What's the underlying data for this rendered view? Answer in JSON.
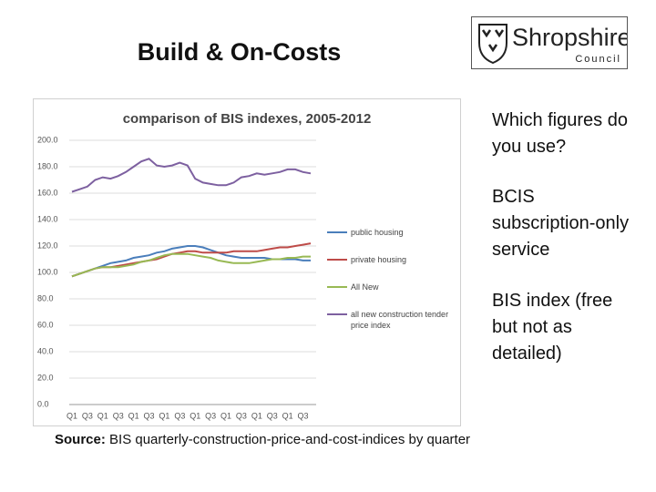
{
  "slide": {
    "title": "Build & On-Costs",
    "logo": {
      "name": "Shropshire",
      "sub": "Council"
    },
    "notes": [
      "Which figures do you use?",
      "BCIS subscription-only service",
      "BIS index (free but not as detailed)"
    ],
    "source_label": "Source:",
    "source_text": "BIS quarterly-construction-price-and-cost-indices by quarter"
  },
  "chart_data": {
    "type": "line",
    "title": "comparison of BIS indexes, 2005-2012",
    "categories": [
      "Q1",
      null,
      "Q3",
      null,
      "Q1",
      null,
      "Q3",
      null,
      "Q1",
      null,
      "Q3",
      null,
      "Q1",
      null,
      "Q3",
      null,
      "Q1",
      null,
      "Q3",
      null,
      "Q1",
      null,
      "Q3",
      null,
      "Q1",
      null,
      "Q3",
      null,
      "Q1",
      null,
      "Q3",
      null
    ],
    "series": [
      {
        "name": "public housing",
        "color": "#4a7ebb",
        "values": [
          97,
          99,
          101,
          103,
          105,
          107,
          108,
          109,
          111,
          112,
          113,
          115,
          116,
          118,
          119,
          120,
          120,
          119,
          117,
          115,
          113,
          112,
          111,
          111,
          111,
          111,
          110,
          110,
          110,
          110,
          109,
          109
        ]
      },
      {
        "name": "private housing",
        "color": "#be4b48",
        "values": [
          97,
          99,
          101,
          103,
          104,
          104,
          105,
          106,
          107,
          108,
          109,
          110,
          112,
          114,
          115,
          116,
          116,
          115,
          115,
          115,
          115,
          116,
          116,
          116,
          116,
          117,
          118,
          119,
          119,
          120,
          121,
          122
        ]
      },
      {
        "name": "All New",
        "color": "#98b954",
        "values": [
          97,
          99,
          101,
          103,
          104,
          104,
          104,
          105,
          106,
          108,
          109,
          111,
          113,
          114,
          114,
          114,
          113,
          112,
          111,
          109,
          108,
          107,
          107,
          107,
          108,
          109,
          110,
          110,
          111,
          111,
          112,
          112
        ]
      },
      {
        "name": "all new construction tender price index",
        "color": "#7d60a0",
        "values": [
          161,
          163,
          165,
          170,
          172,
          171,
          173,
          176,
          180,
          184,
          186,
          181,
          180,
          181,
          183,
          181,
          171,
          168,
          167,
          166,
          166,
          168,
          172,
          173,
          175,
          174,
          175,
          176,
          178,
          178,
          176,
          175
        ]
      }
    ],
    "ylim": [
      0,
      200
    ],
    "yticks": [
      {
        "value": 0,
        "label": "0.0"
      },
      {
        "value": 20,
        "label": "20.0"
      },
      {
        "value": 40,
        "label": "40.0"
      },
      {
        "value": 60,
        "label": "60.0"
      },
      {
        "value": 80,
        "label": "80.0"
      },
      {
        "value": 100,
        "label": "100.0"
      },
      {
        "value": 120,
        "label": "120.0"
      },
      {
        "value": 140,
        "label": "140.0"
      },
      {
        "value": 160,
        "label": "160.0"
      },
      {
        "value": 180,
        "label": "180.0"
      },
      {
        "value": 200,
        "label": "200.0"
      }
    ],
    "grid": true,
    "legend": "right"
  }
}
